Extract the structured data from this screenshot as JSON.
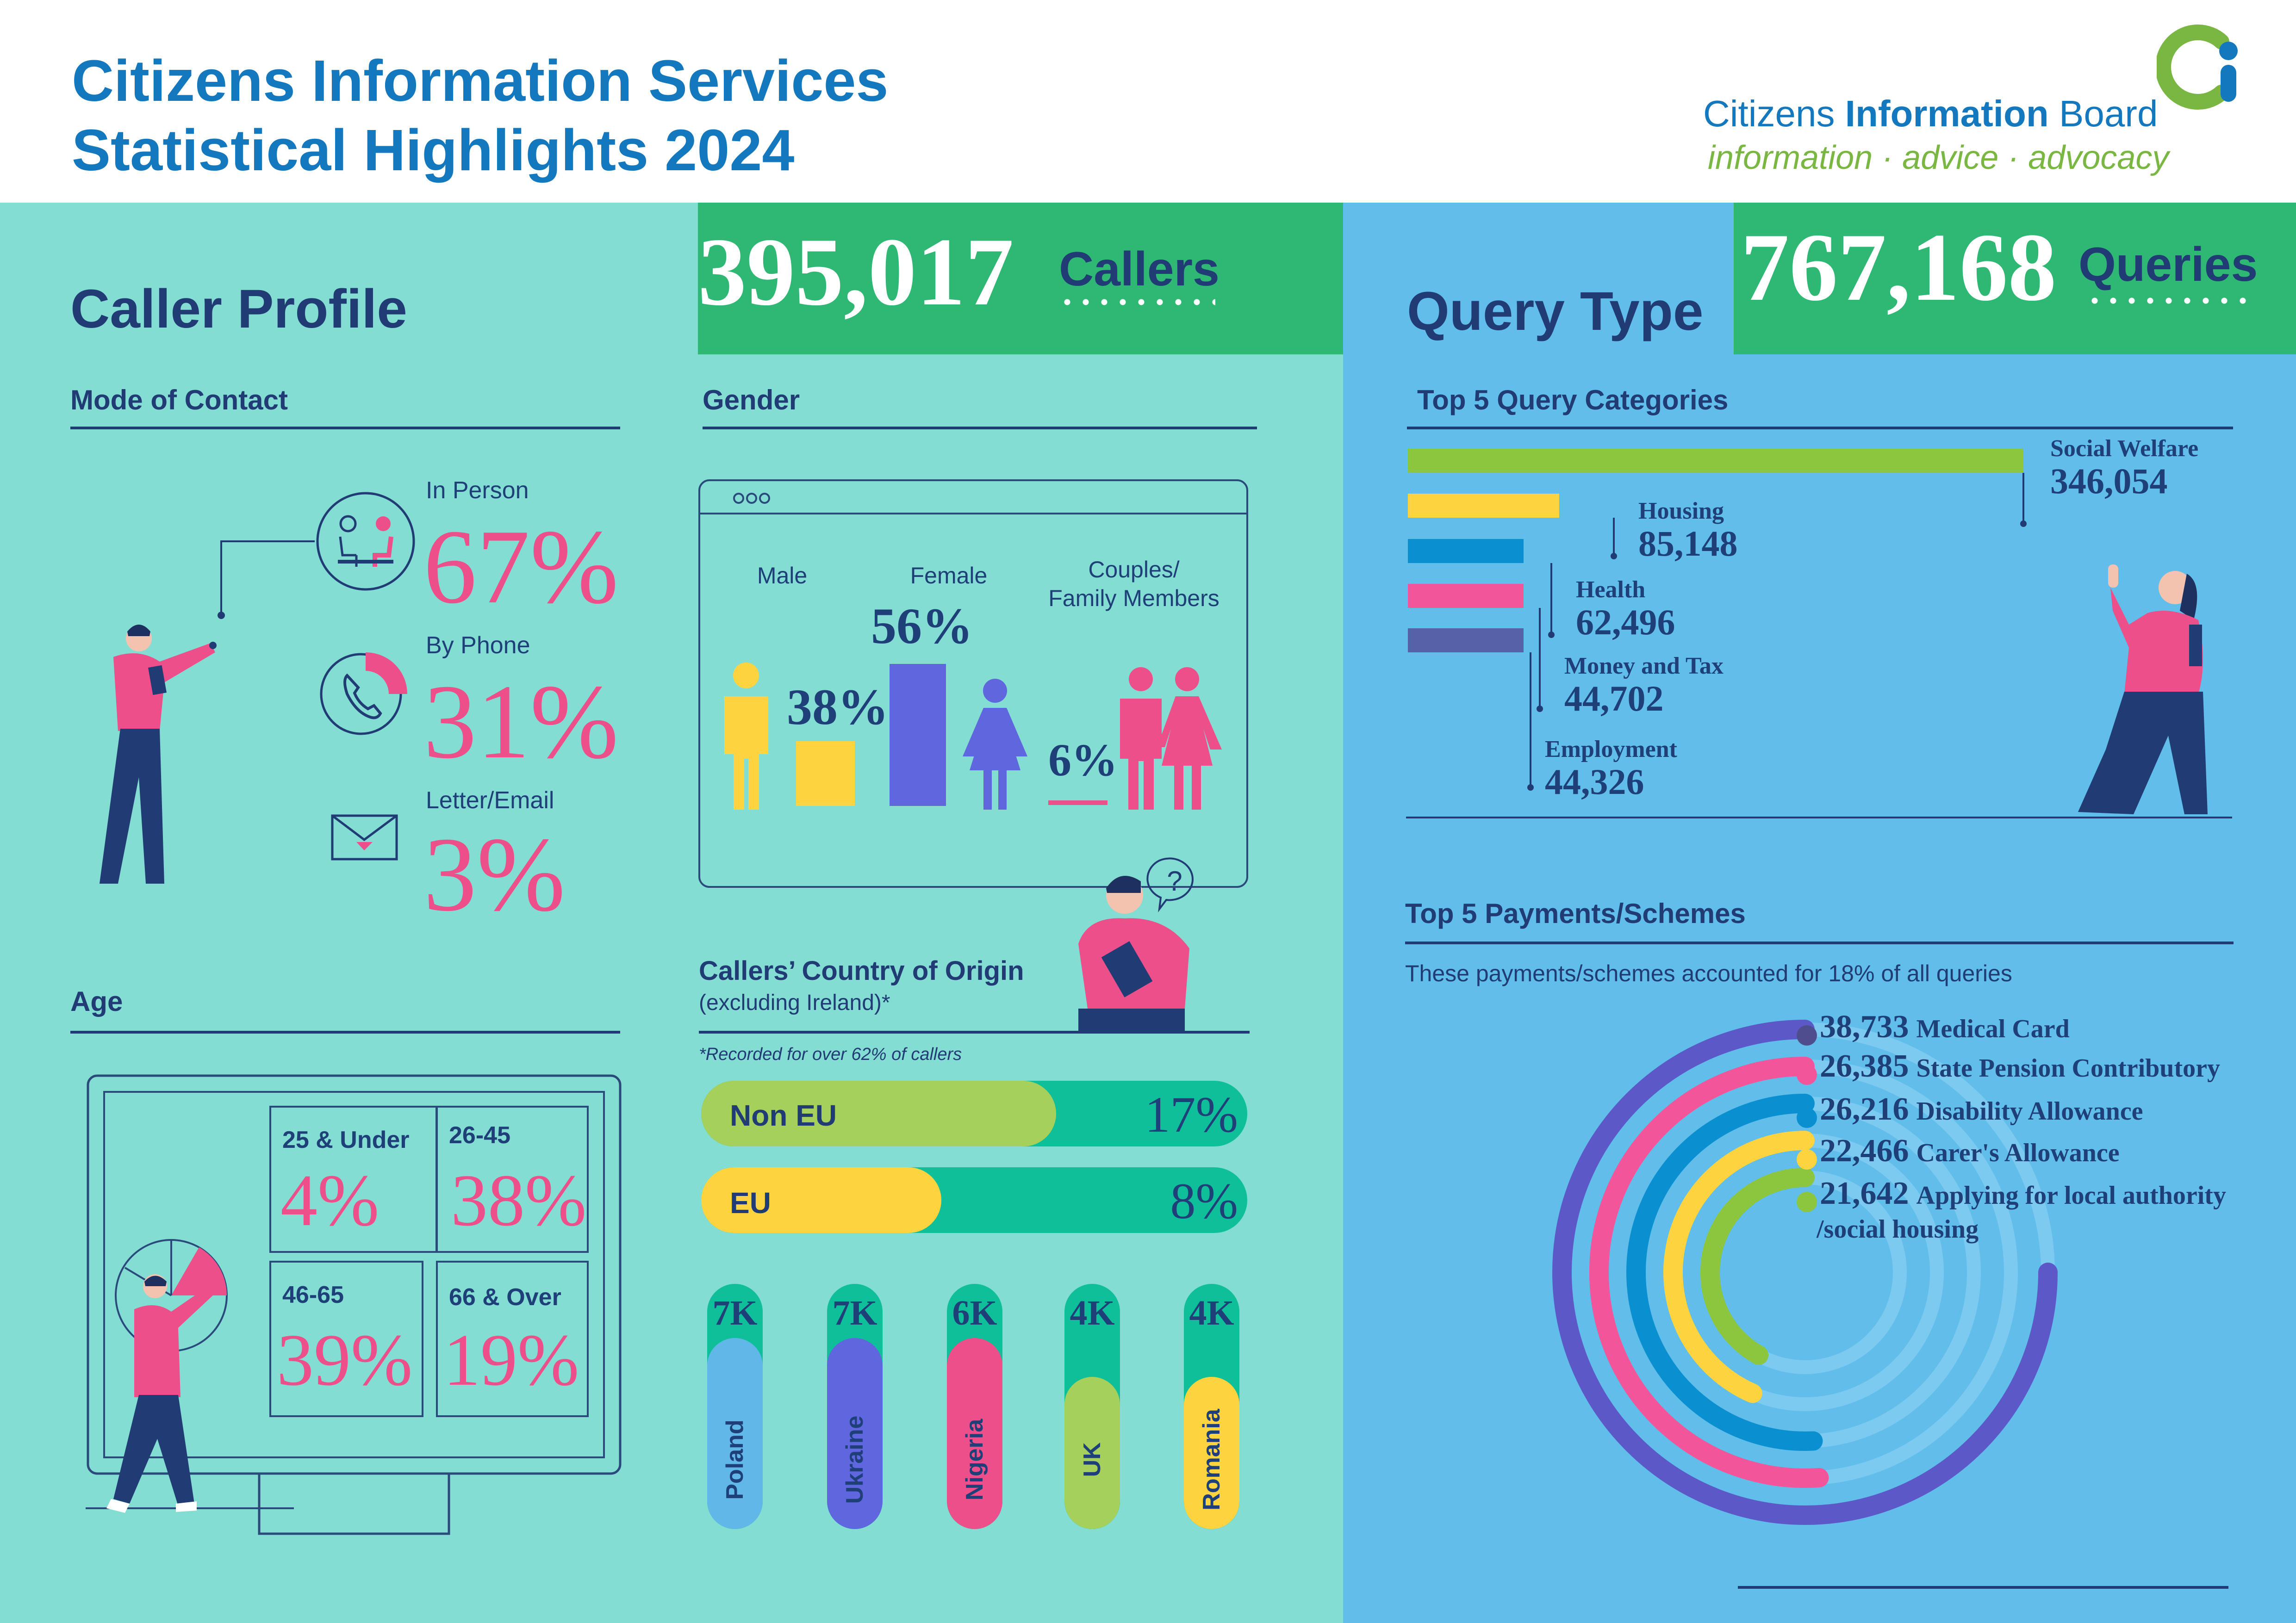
{
  "header": {
    "title_line1": "Citizens Information Services",
    "title_line2": "Statistical Highlights 2024",
    "org_name_part1": "Citizens ",
    "org_name_part2": "Information",
    "org_name_part3": " Board",
    "tagline": "information · advice · advocacy"
  },
  "caller_profile": {
    "title": "Caller Profile",
    "callers_count": "395,017",
    "callers_label": "Callers",
    "mode_of_contact": {
      "title": "Mode of Contact",
      "items": [
        {
          "label": "In Person",
          "value": "67%"
        },
        {
          "label": "By Phone",
          "value": "31%"
        },
        {
          "label": "Letter/Email",
          "value": "3%"
        }
      ]
    },
    "age": {
      "title": "Age",
      "items": [
        {
          "label": "25 & Under",
          "value": "4%"
        },
        {
          "label": "26-45",
          "value": "38%"
        },
        {
          "label": "46-65",
          "value": "39%"
        },
        {
          "label": "66 & Over",
          "value": "19%"
        }
      ]
    },
    "gender": {
      "title": "Gender",
      "male_label": "Male",
      "male_value": "38%",
      "female_label": "Female",
      "female_value": "56%",
      "couples_label_line1": "Couples/",
      "couples_label_line2": "Family Members",
      "couples_value": "6%"
    },
    "country_of_origin": {
      "title": "Callers’ Country of Origin",
      "subtitle": "(excluding Ireland)*",
      "note": "*Recorded for over 62% of callers",
      "non_eu_label": "Non EU",
      "non_eu_value": "17%",
      "non_eu_fill": 0.65,
      "eu_label": "EU",
      "eu_value": "8%",
      "eu_fill": 0.44,
      "countries": [
        {
          "name": "Poland",
          "value": "7K",
          "fill": 0.78,
          "color": "#61b8e8"
        },
        {
          "name": "Ukraine",
          "value": "7K",
          "fill": 0.78,
          "color": "#5f66de"
        },
        {
          "name": "Nigeria",
          "value": "6K",
          "fill": 0.78,
          "color": "#ec4f8a"
        },
        {
          "name": "UK",
          "value": "4K",
          "fill": 0.62,
          "color": "#a6d05c"
        },
        {
          "name": "Romania",
          "value": "4K",
          "fill": 0.62,
          "color": "#fdd33f"
        }
      ]
    }
  },
  "query_type": {
    "title": "Query Type",
    "queries_count": "767,168",
    "queries_label": "Queries",
    "top_categories": {
      "title": "Top 5 Query Categories",
      "items": [
        {
          "label": "Social Welfare",
          "value": "346,054",
          "amount": 346054,
          "color": "#8cc63f"
        },
        {
          "label": "Housing",
          "value": "85,148",
          "amount": 85148,
          "color": "#fdd33f"
        },
        {
          "label": "Health",
          "value": "62,496",
          "amount": 62496,
          "color": "#0a8fd0"
        },
        {
          "label": "Money and Tax",
          "value": "44,702",
          "amount": 44702,
          "color": "#f2559a"
        },
        {
          "label": "Employment",
          "value": "44,326",
          "amount": 44326,
          "color": "#5661a8"
        }
      ]
    },
    "payments": {
      "title": "Top 5 Payments/Schemes",
      "subtitle": "These payments/schemes accounted for 18% of all queries",
      "items": [
        {
          "value": "38,733",
          "label": "Medical Card",
          "amount": 38733,
          "color": "#5c58c8",
          "dot": "#4e4e8e"
        },
        {
          "value": "26,385",
          "label": "State Pension Contributory",
          "amount": 26385,
          "color": "#f2559a",
          "dot": "#f2559a"
        },
        {
          "value": "26,216",
          "label": "Disability Allowance",
          "amount": 26216,
          "color": "#0a8fd0",
          "dot": "#0a8fd0"
        },
        {
          "value": "22,466",
          "label": "Carer's Allowance",
          "amount": 22466,
          "color": "#fdd33f",
          "dot": "#fdd33f"
        },
        {
          "value": "21,642",
          "label": "Applying for local authority",
          "label2": "/social housing",
          "amount": 21642,
          "color": "#8cc63f",
          "dot": "#8cc63f"
        }
      ]
    }
  },
  "colors": {
    "teal_panel": "#83ddd3",
    "blue_panel": "#61bde9",
    "green_band": "#2fb774",
    "navy": "#213b74",
    "pink": "#ec4f8a"
  }
}
